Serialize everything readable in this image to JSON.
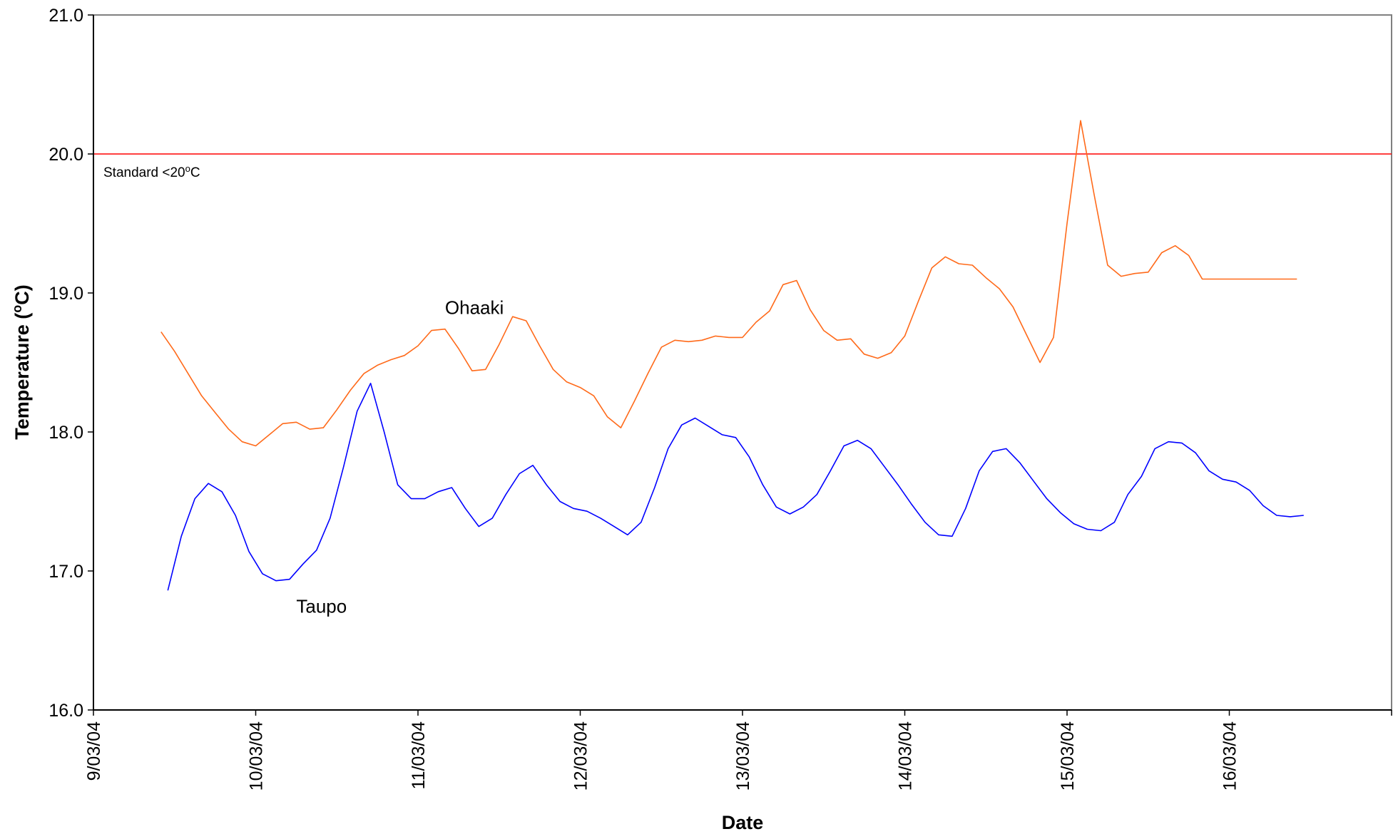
{
  "chart_data": {
    "type": "line",
    "title": "",
    "xlabel": "Date",
    "ylabel_main": "Temperature (",
    "ylabel_sup": "o",
    "ylabel_end": "C)",
    "ylim": [
      16.0,
      21.0
    ],
    "xlim": [
      "2004-03-09",
      "2004-03-17"
    ],
    "yticks": [
      "16.0",
      "17.0",
      "18.0",
      "19.0",
      "20.0",
      "21.0"
    ],
    "xticks": [
      "9/03/04",
      "10/03/04",
      "11/03/04",
      "12/03/04",
      "13/03/04",
      "14/03/04",
      "15/03/04",
      "16/03/04"
    ],
    "grid": false,
    "legend": "none",
    "reference_line": {
      "y": 20.0,
      "color": "#ff0000",
      "label_main": "Standard <20",
      "label_sup": "o",
      "label_end": "C"
    },
    "series": [
      {
        "name": "Ohaaki",
        "color": "#ff6a1a",
        "x": [
          "2004-03-09 10:00",
          "2004-03-09 12:00",
          "2004-03-09 14:00",
          "2004-03-09 16:00",
          "2004-03-09 18:00",
          "2004-03-09 20:00",
          "2004-03-09 22:00",
          "2004-03-10 00:00",
          "2004-03-10 02:00",
          "2004-03-10 04:00",
          "2004-03-10 06:00",
          "2004-03-10 08:00",
          "2004-03-10 10:00",
          "2004-03-10 12:00",
          "2004-03-10 14:00",
          "2004-03-10 16:00",
          "2004-03-10 18:00",
          "2004-03-10 20:00",
          "2004-03-10 22:00",
          "2004-03-11 00:00",
          "2004-03-11 02:00",
          "2004-03-11 04:00",
          "2004-03-11 06:00",
          "2004-03-11 08:00",
          "2004-03-11 10:00",
          "2004-03-11 12:00",
          "2004-03-11 14:00",
          "2004-03-11 16:00",
          "2004-03-11 18:00",
          "2004-03-11 20:00",
          "2004-03-11 22:00",
          "2004-03-12 00:00",
          "2004-03-12 02:00",
          "2004-03-12 04:00",
          "2004-03-12 06:00",
          "2004-03-12 08:00",
          "2004-03-12 10:00",
          "2004-03-12 12:00",
          "2004-03-12 14:00",
          "2004-03-12 16:00",
          "2004-03-12 18:00",
          "2004-03-12 20:00",
          "2004-03-12 22:00",
          "2004-03-13 00:00",
          "2004-03-13 02:00",
          "2004-03-13 04:00",
          "2004-03-13 06:00",
          "2004-03-13 08:00",
          "2004-03-13 10:00",
          "2004-03-13 12:00",
          "2004-03-13 14:00",
          "2004-03-13 16:00",
          "2004-03-13 18:00",
          "2004-03-13 20:00",
          "2004-03-13 22:00",
          "2004-03-14 00:00",
          "2004-03-14 02:00",
          "2004-03-14 04:00",
          "2004-03-14 06:00",
          "2004-03-14 08:00",
          "2004-03-14 10:00",
          "2004-03-14 12:00",
          "2004-03-14 14:00",
          "2004-03-14 16:00",
          "2004-03-14 18:00",
          "2004-03-14 20:00",
          "2004-03-14 22:00",
          "2004-03-15 00:00",
          "2004-03-15 02:00",
          "2004-03-15 04:00",
          "2004-03-15 06:00",
          "2004-03-15 08:00",
          "2004-03-15 10:00",
          "2004-03-15 12:00",
          "2004-03-15 14:00",
          "2004-03-15 16:00",
          "2004-03-15 18:00",
          "2004-03-15 20:00",
          "2004-03-15 22:00",
          "2004-03-16 00:00",
          "2004-03-16 02:00",
          "2004-03-16 04:00",
          "2004-03-16 06:00",
          "2004-03-16 08:00",
          "2004-03-16 10:00"
        ],
        "values": [
          18.72,
          18.58,
          18.42,
          18.26,
          18.14,
          18.02,
          17.93,
          17.9,
          17.98,
          18.06,
          18.07,
          18.02,
          18.03,
          18.16,
          18.3,
          18.42,
          18.48,
          18.52,
          18.55,
          18.62,
          18.73,
          18.74,
          18.6,
          18.44,
          18.45,
          18.63,
          18.83,
          18.8,
          18.62,
          18.45,
          18.36,
          18.32,
          18.26,
          18.11,
          18.03,
          18.22,
          18.42,
          18.61,
          18.66,
          18.65,
          18.66,
          18.69,
          18.68,
          18.68,
          18.79,
          18.87,
          19.06,
          19.09,
          18.88,
          18.73,
          18.66,
          18.67,
          18.56,
          18.53,
          18.57,
          18.69,
          18.94,
          19.18,
          19.26,
          19.21,
          19.2,
          19.11,
          19.03,
          18.9,
          18.7,
          18.5,
          18.68,
          19.5,
          20.24,
          19.71,
          19.2,
          19.12,
          19.14,
          19.15,
          19.29,
          19.34,
          19.27,
          19.1,
          19.1,
          19.1,
          19.1,
          19.1,
          19.1,
          19.1,
          19.1
        ]
      },
      {
        "name": "Taupo",
        "color": "#0000ff",
        "x": [
          "2004-03-09 11:00",
          "2004-03-09 13:00",
          "2004-03-09 15:00",
          "2004-03-09 17:00",
          "2004-03-09 19:00",
          "2004-03-09 21:00",
          "2004-03-09 23:00",
          "2004-03-10 01:00",
          "2004-03-10 03:00",
          "2004-03-10 05:00",
          "2004-03-10 07:00",
          "2004-03-10 09:00",
          "2004-03-10 11:00",
          "2004-03-10 13:00",
          "2004-03-10 15:00",
          "2004-03-10 17:00",
          "2004-03-10 19:00",
          "2004-03-10 21:00",
          "2004-03-10 23:00",
          "2004-03-11 01:00",
          "2004-03-11 03:00",
          "2004-03-11 05:00",
          "2004-03-11 07:00",
          "2004-03-11 09:00",
          "2004-03-11 11:00",
          "2004-03-11 13:00",
          "2004-03-11 15:00",
          "2004-03-11 17:00",
          "2004-03-11 19:00",
          "2004-03-11 21:00",
          "2004-03-11 23:00",
          "2004-03-12 01:00",
          "2004-03-12 03:00",
          "2004-03-12 05:00",
          "2004-03-12 07:00",
          "2004-03-12 09:00",
          "2004-03-12 11:00",
          "2004-03-12 13:00",
          "2004-03-12 15:00",
          "2004-03-12 17:00",
          "2004-03-12 19:00",
          "2004-03-12 21:00",
          "2004-03-12 23:00",
          "2004-03-13 01:00",
          "2004-03-13 03:00",
          "2004-03-13 05:00",
          "2004-03-13 07:00",
          "2004-03-13 09:00",
          "2004-03-13 11:00",
          "2004-03-13 13:00",
          "2004-03-13 15:00",
          "2004-03-13 17:00",
          "2004-03-13 19:00",
          "2004-03-13 21:00",
          "2004-03-13 23:00",
          "2004-03-14 01:00",
          "2004-03-14 03:00",
          "2004-03-14 05:00",
          "2004-03-14 07:00",
          "2004-03-14 09:00",
          "2004-03-14 11:00",
          "2004-03-14 13:00",
          "2004-03-14 15:00",
          "2004-03-14 17:00",
          "2004-03-14 19:00",
          "2004-03-14 21:00",
          "2004-03-14 23:00",
          "2004-03-15 01:00",
          "2004-03-15 03:00",
          "2004-03-15 05:00",
          "2004-03-15 07:00",
          "2004-03-15 09:00",
          "2004-03-15 11:00",
          "2004-03-15 13:00",
          "2004-03-15 15:00",
          "2004-03-15 17:00",
          "2004-03-15 19:00",
          "2004-03-15 21:00",
          "2004-03-15 23:00",
          "2004-03-16 01:00",
          "2004-03-16 03:00",
          "2004-03-16 05:00",
          "2004-03-16 07:00",
          "2004-03-16 09:00",
          "2004-03-16 11:00"
        ],
        "values": [
          16.86,
          17.25,
          17.52,
          17.63,
          17.57,
          17.4,
          17.14,
          16.98,
          16.93,
          16.94,
          17.05,
          17.15,
          17.38,
          17.75,
          18.15,
          18.35,
          18.0,
          17.62,
          17.52,
          17.52,
          17.57,
          17.6,
          17.45,
          17.32,
          17.38,
          17.55,
          17.7,
          17.76,
          17.62,
          17.5,
          17.45,
          17.43,
          17.38,
          17.32,
          17.26,
          17.35,
          17.6,
          17.88,
          18.05,
          18.1,
          18.04,
          17.98,
          17.96,
          17.82,
          17.62,
          17.46,
          17.41,
          17.46,
          17.55,
          17.72,
          17.9,
          17.94,
          17.88,
          17.75,
          17.62,
          17.48,
          17.35,
          17.26,
          17.25,
          17.45,
          17.72,
          17.86,
          17.88,
          17.78,
          17.65,
          17.52,
          17.42,
          17.34,
          17.3,
          17.29,
          17.35,
          17.55,
          17.68,
          17.88,
          17.93,
          17.92,
          17.85,
          17.72,
          17.66,
          17.64,
          17.58,
          17.47,
          17.4,
          17.39,
          17.4
        ]
      }
    ],
    "annotations": [
      {
        "text": "Ohaaki",
        "x": "2004-03-11 04:00",
        "y": 18.85
      },
      {
        "text": "Taupo",
        "x": "2004-03-10 06:00",
        "y": 16.7
      }
    ]
  }
}
